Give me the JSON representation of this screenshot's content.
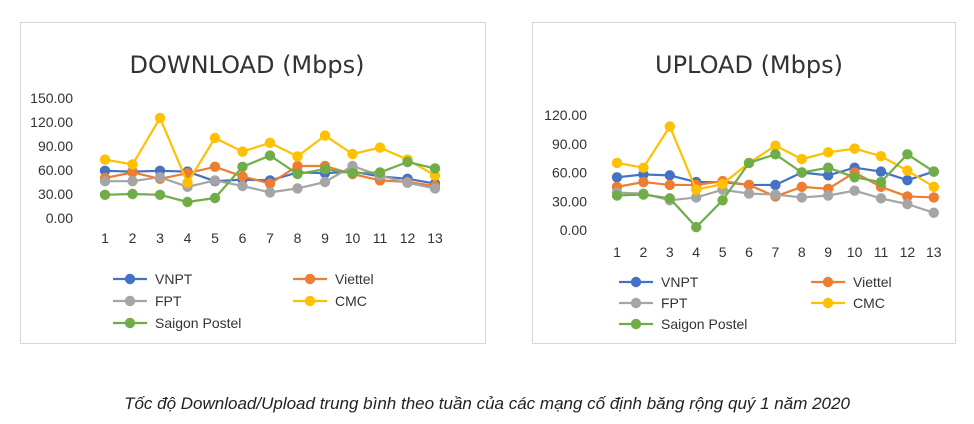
{
  "caption": "Tốc độ Download/Upload trung bình theo tuần của các mạng cố định băng rộng quý 1 năm 2020",
  "chart_data": [
    {
      "type": "line",
      "title": "DOWNLOAD (Mbps)",
      "xlabel": "",
      "ylabel": "",
      "ylim": [
        0,
        150
      ],
      "yticks": [
        "0.00",
        "30.00",
        "60.00",
        "90.00",
        "120.00",
        "150.00"
      ],
      "ytick_values": [
        0,
        30,
        60,
        90,
        120,
        150
      ],
      "categories": [
        "1",
        "2",
        "3",
        "4",
        "5",
        "6",
        "7",
        "8",
        "9",
        "10",
        "11",
        "12",
        "13"
      ],
      "grid": false,
      "legend": "bottom",
      "series": [
        {
          "name": "VNPT",
          "color": "#4472C4",
          "values": [
            59,
            58,
            59,
            58,
            46,
            48,
            47,
            57,
            56,
            58,
            52,
            49,
            43
          ]
        },
        {
          "name": "Viettel",
          "color": "#ED7D31",
          "values": [
            50,
            57,
            49,
            56,
            64,
            52,
            43,
            65,
            65,
            55,
            47,
            45,
            40
          ]
        },
        {
          "name": "FPT",
          "color": "#A5A5A5",
          "values": [
            46,
            46,
            51,
            39,
            47,
            40,
            32,
            37,
            45,
            65,
            53,
            44,
            37
          ]
        },
        {
          "name": "CMC",
          "color": "#FFC000",
          "values": [
            73,
            67,
            125,
            44,
            100,
            83,
            94,
            77,
            103,
            80,
            88,
            73,
            53
          ]
        },
        {
          "name": "Saigon Postel",
          "color": "#70AD47",
          "values": [
            29,
            30,
            29,
            20,
            25,
            64,
            78,
            55,
            61,
            56,
            57,
            70,
            62
          ]
        }
      ]
    },
    {
      "type": "line",
      "title": "UPLOAD (Mbps)",
      "xlabel": "",
      "ylabel": "",
      "ylim": [
        0,
        120
      ],
      "yticks": [
        "0.00",
        "30.00",
        "60.00",
        "90.00",
        "120.00"
      ],
      "ytick_values": [
        0,
        30,
        60,
        90,
        120
      ],
      "categories": [
        "1",
        "2",
        "3",
        "4",
        "5",
        "6",
        "7",
        "8",
        "9",
        "10",
        "11",
        "12",
        "13"
      ],
      "grid": false,
      "legend": "bottom",
      "series": [
        {
          "name": "VNPT",
          "color": "#4472C4",
          "values": [
            55,
            58,
            57,
            50,
            50,
            47,
            47,
            60,
            57,
            65,
            61,
            52,
            61
          ]
        },
        {
          "name": "Viettel",
          "color": "#ED7D31",
          "values": [
            45,
            50,
            47,
            47,
            51,
            47,
            35,
            45,
            43,
            60,
            45,
            35,
            34
          ]
        },
        {
          "name": "FPT",
          "color": "#A5A5A5",
          "values": [
            39,
            38,
            31,
            34,
            42,
            38,
            37,
            34,
            36,
            41,
            33,
            27,
            18
          ]
        },
        {
          "name": "CMC",
          "color": "#FFC000",
          "values": [
            70,
            65,
            108,
            42,
            48,
            70,
            88,
            74,
            81,
            85,
            77,
            62,
            45
          ]
        },
        {
          "name": "Saigon Postel",
          "color": "#70AD47",
          "values": [
            36,
            37,
            33,
            3,
            31,
            70,
            79,
            60,
            65,
            55,
            50,
            79,
            61
          ]
        }
      ]
    }
  ]
}
